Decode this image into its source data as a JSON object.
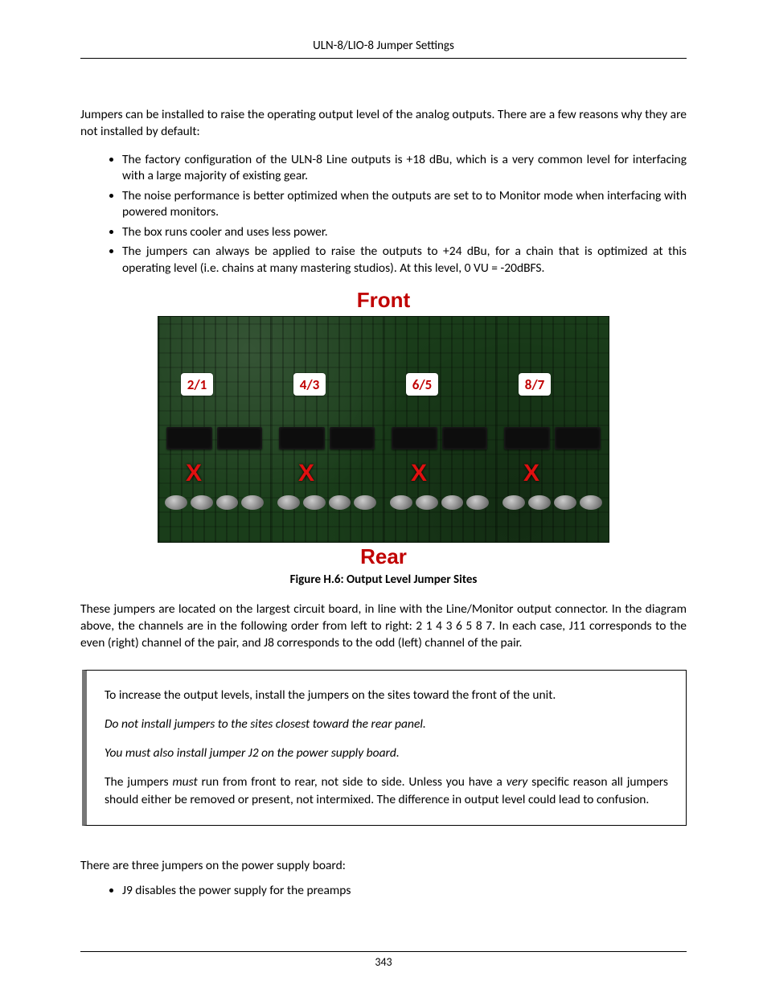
{
  "header": {
    "title": "ULN-8/LIO-8 Jumper Settings"
  },
  "intro": "Jumpers can be installed to raise the operating output level of the analog outputs. There are a few reasons why they are not installed by default:",
  "bullets_top": [
    "The factory configuration of the ULN-8 Line outputs is +18 dBu, which is a very common level for interfacing with a large majority of existing gear.",
    "The noise performance is better optimized when the outputs are set to to Monitor mode when interfacing with powered monitors.",
    "The box runs cooler and uses less power.",
    "The jumpers can always be applied to raise the outputs to +24 dBu, for a chain that is optimized at this operating level (i.e. chains at many mastering studios). At this level, 0 VU = -20dBFS."
  ],
  "figure": {
    "top_label": "Front",
    "bottom_label": "Rear",
    "caption": "Figure H.6: Output Level Jumper Sites",
    "tags": [
      "2/1",
      "4/3",
      "6/5",
      "8/7"
    ],
    "x_mark": "X",
    "label_color": "#c00000",
    "board_color": "#1a3d1a"
  },
  "after_figure": "These jumpers are located on the largest circuit board, in line with the Line/Monitor output connector. In the diagram above, the channels are in the following order from left to right: 2 1 4 3 6 5 8 7. In each case, J11 corresponds to the even (right) channel of the pair, and J8 corresponds to the odd (left) channel of the pair.",
  "note": {
    "p1": "To increase the output levels, install the jumpers on the sites toward the front of the unit.",
    "p2": "Do not install jumpers to the sites closest toward the rear panel.",
    "p3": "You must also install jumper J2 on the power supply board.",
    "p4_a": "The jumpers ",
    "p4_em1": "must",
    "p4_b": " run from front to rear, not side to side. Unless you have a ",
    "p4_em2": "very",
    "p4_c": " specific reason all jumpers should either be removed or present, not intermixed. The difference in output level could lead to confusion."
  },
  "follow_text": "There are three jumpers on the power supply board:",
  "bullets_bottom": [
    "J9 disables the power supply for the preamps"
  ],
  "page_number": "343"
}
